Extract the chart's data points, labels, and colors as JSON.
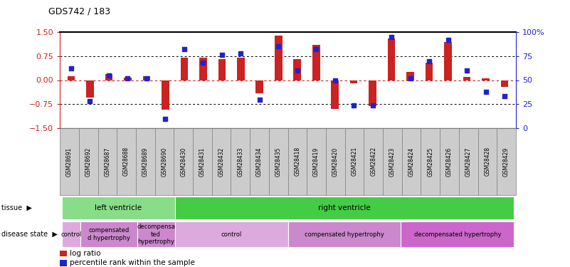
{
  "title": "GDS742 / 183",
  "samples": [
    "GSM28691",
    "GSM28692",
    "GSM28687",
    "GSM28688",
    "GSM28689",
    "GSM28690",
    "GSM28430",
    "GSM28431",
    "GSM28432",
    "GSM28433",
    "GSM28434",
    "GSM28435",
    "GSM28418",
    "GSM28419",
    "GSM28420",
    "GSM28421",
    "GSM28422",
    "GSM28423",
    "GSM28424",
    "GSM28425",
    "GSM28426",
    "GSM28427",
    "GSM28428",
    "GSM28429"
  ],
  "log_ratio": [
    0.12,
    -0.55,
    0.18,
    0.08,
    0.12,
    -0.92,
    0.7,
    0.7,
    0.65,
    0.7,
    -0.4,
    1.4,
    0.65,
    1.1,
    -0.9,
    -0.1,
    -0.8,
    1.3,
    0.25,
    0.55,
    1.2,
    0.1,
    0.05,
    -0.22
  ],
  "pct_rank": [
    62,
    28,
    55,
    52,
    52,
    10,
    82,
    68,
    76,
    78,
    30,
    85,
    60,
    82,
    50,
    24,
    24,
    95,
    52,
    70,
    92,
    60,
    38,
    33
  ],
  "bar_color": "#cc2222",
  "dot_color": "#2222cc",
  "ylim_left": [
    -1.5,
    1.5
  ],
  "yticks_left": [
    -1.5,
    -0.75,
    0.0,
    0.75,
    1.5
  ],
  "ylim_right": [
    0,
    100
  ],
  "yticks_right": [
    0,
    25,
    50,
    75,
    100
  ],
  "ytick_labels_right": [
    "0",
    "25",
    "50",
    "75",
    "100%"
  ],
  "hline_dotted": [
    0.75,
    -0.75
  ],
  "tissue_labels": [
    {
      "text": "left ventricle",
      "start": 0,
      "end": 5,
      "color": "#88dd88"
    },
    {
      "text": "right ventricle",
      "start": 6,
      "end": 23,
      "color": "#44cc44"
    }
  ],
  "disease_labels": [
    {
      "text": "control",
      "start": 0,
      "end": 0,
      "color": "#ddaadd"
    },
    {
      "text": "compensated\nd hypertrophy",
      "start": 1,
      "end": 3,
      "color": "#cc88cc"
    },
    {
      "text": "decompensa\nted\nhypertrophy",
      "start": 4,
      "end": 5,
      "color": "#cc88cc"
    },
    {
      "text": "control",
      "start": 6,
      "end": 11,
      "color": "#ddaadd"
    },
    {
      "text": "compensated hypertrophy",
      "start": 12,
      "end": 17,
      "color": "#cc88cc"
    },
    {
      "text": "decompensated hypertrophy",
      "start": 18,
      "end": 23,
      "color": "#cc66cc"
    }
  ],
  "legend_items": [
    {
      "label": "log ratio",
      "color": "#cc2222"
    },
    {
      "label": "percentile rank within the sample",
      "color": "#2222cc"
    }
  ]
}
